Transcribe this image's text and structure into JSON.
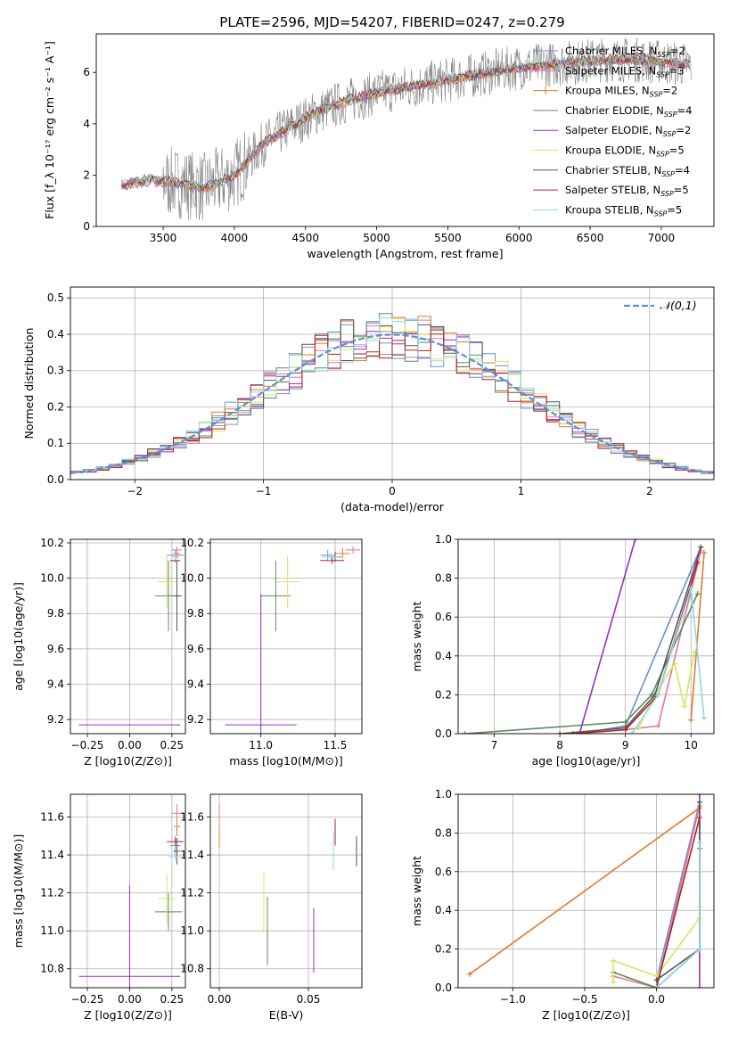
{
  "figure": {
    "title": "PLATE=2596, MJD=54207, FIBERID=0247, z=0.279"
  },
  "colors": {
    "chabrier_miles": "#6b8fd6",
    "salpeter_miles": "#e8749a",
    "kroupa_miles": "#e07b2f",
    "chabrier_elodie": "#5e8a5e",
    "salpeter_elodie": "#9b2fc0",
    "kroupa_elodie": "#d4e85a",
    "chabrier_stelib": "#555555",
    "salpeter_stelib": "#b22222",
    "kroupa_stelib": "#8fd8e6",
    "data": "#808080",
    "normal": "#5b8fd6"
  },
  "chart_data": [
    {
      "id": "spectrum",
      "type": "line",
      "title": "PLATE=2596, MJD=54207, FIBERID=0247, z=0.279",
      "xlabel": "wavelength [Angstrom, rest frame]",
      "ylabel": "Flux [f_λ 10⁻¹⁷ erg cm⁻² s⁻¹ A⁻¹]",
      "xlim": [
        3030,
        7370
      ],
      "ylim": [
        0,
        7.5
      ],
      "xticks": [
        3500,
        4000,
        4500,
        5000,
        5500,
        6000,
        6500,
        7000
      ],
      "yticks": [
        0,
        2,
        4,
        6
      ],
      "legend": "top-right",
      "legend_entries": [
        "Chabrier MILES, N_SSP=2",
        "Salpeter MILES, N_SSP=3",
        "Kroupa MILES, N_SSP=2",
        "Chabrier ELODIE, N_SSP=4",
        "Salpeter ELODIE, N_SSP=2",
        "Kroupa ELODIE, N_SSP=5",
        "Chabrier STELIB, N_SSP=4",
        "Salpeter STELIB, N_SSP=5",
        "Kroupa STELIB, N_SSP=5"
      ],
      "model_curve": {
        "x": [
          3200,
          3400,
          3600,
          3800,
          4000,
          4200,
          4400,
          4600,
          4800,
          5000,
          5200,
          5400,
          5600,
          5800,
          6000,
          6200,
          6400,
          6600,
          6800,
          7000,
          7200
        ],
        "y": [
          1.6,
          1.8,
          1.7,
          1.5,
          2.0,
          3.2,
          3.9,
          4.5,
          4.9,
          5.2,
          5.4,
          5.6,
          5.8,
          6.0,
          6.2,
          6.3,
          6.4,
          6.5,
          6.5,
          6.4,
          6.3
        ]
      }
    },
    {
      "id": "residuals",
      "type": "line",
      "xlabel": "(data-model)/error",
      "ylabel": "Normed distribution",
      "xlim": [
        -2.5,
        2.5
      ],
      "ylim": [
        0,
        0.53
      ],
      "xticks": [
        -2,
        -1,
        0,
        1,
        2
      ],
      "yticks": [
        0.0,
        0.1,
        0.2,
        0.3,
        0.4,
        0.5
      ],
      "legend": "top-right",
      "legend_entries": [
        "𝒩(0,1)"
      ],
      "histogram_bin_width": 0.1,
      "normal": {
        "mu": 0,
        "sigma": 1
      }
    },
    {
      "id": "age_vs_Z",
      "type": "scatter",
      "xlabel": "Z [log10(Z/Z⊙)]",
      "ylabel": "age  [log10(age/yr)]",
      "xlim": [
        -0.35,
        0.33
      ],
      "ylim": [
        9.12,
        10.22
      ],
      "xticks": [
        -0.25,
        0.0,
        0.25
      ],
      "yticks": [
        9.2,
        9.4,
        9.6,
        9.8,
        10.0,
        10.2
      ],
      "points": [
        {
          "s": "chabrier_miles",
          "x": 0.27,
          "y": 10.13,
          "xe": 0.05,
          "ye": 0.03
        },
        {
          "s": "salpeter_miles",
          "x": 0.28,
          "y": 10.16,
          "xe": 0.03,
          "ye": 0.02
        },
        {
          "s": "kroupa_miles",
          "x": 0.28,
          "y": 10.14,
          "xe": 0.02,
          "ye": 0.03
        },
        {
          "s": "chabrier_elodie",
          "x": 0.23,
          "y": 9.9,
          "xe": 0.08,
          "ye": 0.2
        },
        {
          "s": "salpeter_elodie",
          "x": 0.0,
          "y": 9.17,
          "xe": 0.3,
          "ye": 0.0
        },
        {
          "s": "kroupa_elodie",
          "x": 0.22,
          "y": 9.98,
          "xe": 0.05,
          "ye": 0.15
        },
        {
          "s": "chabrier_stelib",
          "x": 0.28,
          "y": 9.9,
          "xe": 0.02,
          "ye": 0.2
        },
        {
          "s": "salpeter_stelib",
          "x": 0.27,
          "y": 10.1,
          "xe": 0.03,
          "ye": 0.01
        },
        {
          "s": "kroupa_stelib",
          "x": 0.27,
          "y": 10.12,
          "xe": 0.02,
          "ye": 0.02
        }
      ]
    },
    {
      "id": "age_vs_mass",
      "type": "scatter",
      "xlabel": "mass [log10(M/M⊙)]",
      "ylabel": "",
      "xlim": [
        10.66,
        11.68
      ],
      "ylim": [
        9.12,
        10.22
      ],
      "xticks": [
        11.0,
        11.5
      ],
      "yticks": [
        9.2,
        9.4,
        9.6,
        9.8,
        10.0,
        10.2
      ],
      "points": [
        {
          "s": "chabrier_miles",
          "x": 11.45,
          "y": 10.13,
          "xe": 0.05,
          "ye": 0.03
        },
        {
          "s": "salpeter_miles",
          "x": 11.62,
          "y": 10.16,
          "xe": 0.05,
          "ye": 0.02
        },
        {
          "s": "kroupa_miles",
          "x": 11.55,
          "y": 10.14,
          "xe": 0.05,
          "ye": 0.03
        },
        {
          "s": "chabrier_elodie",
          "x": 11.1,
          "y": 9.9,
          "xe": 0.1,
          "ye": 0.2
        },
        {
          "s": "salpeter_elodie",
          "x": 11.0,
          "y": 9.17,
          "xe": 0.24,
          "ye": 0.74
        },
        {
          "s": "kroupa_elodie",
          "x": 11.18,
          "y": 9.98,
          "xe": 0.08,
          "ye": 0.15
        },
        {
          "s": "chabrier_stelib",
          "x": 11.5,
          "y": 10.12,
          "xe": 0.04,
          "ye": 0.03
        },
        {
          "s": "salpeter_stelib",
          "x": 11.48,
          "y": 10.1,
          "xe": 0.08,
          "ye": 0.02
        },
        {
          "s": "kroupa_stelib",
          "x": 11.47,
          "y": 10.12,
          "xe": 0.06,
          "ye": 0.03
        }
      ]
    },
    {
      "id": "weight_vs_age",
      "type": "line",
      "xlabel": "age  [log10(age/yr)]",
      "ylabel": "mass weight",
      "xlim": [
        6.45,
        10.35
      ],
      "ylim": [
        0,
        1.0
      ],
      "xticks": [
        7,
        8,
        9,
        10
      ],
      "yticks": [
        0.0,
        0.2,
        0.4,
        0.6,
        0.8,
        1.0
      ],
      "series": [
        {
          "s": "chabrier_miles",
          "x": [
            8.3,
            9.0,
            10.15
          ],
          "y": [
            0.0,
            0.04,
            0.96
          ]
        },
        {
          "s": "salpeter_miles",
          "x": [
            9.0,
            9.5,
            10.15
          ],
          "y": [
            0.02,
            0.04,
            0.94
          ]
        },
        {
          "s": "kroupa_miles",
          "x": [
            10.0,
            10.2
          ],
          "y": [
            0.07,
            0.93
          ]
        },
        {
          "s": "chabrier_elodie",
          "x": [
            6.55,
            9.0,
            9.4,
            10.1
          ],
          "y": [
            0.0,
            0.06,
            0.2,
            0.72
          ]
        },
        {
          "s": "salpeter_elodie",
          "x": [
            8.3,
            9.15
          ],
          "y": [
            0.0,
            1.0
          ]
        },
        {
          "s": "kroupa_elodie",
          "x": [
            9.2,
            9.45,
            9.75,
            9.9,
            10.05
          ],
          "y": [
            0.03,
            0.2,
            0.36,
            0.14,
            0.42
          ]
        },
        {
          "s": "chabrier_stelib",
          "x": [
            8.0,
            9.0,
            9.45,
            10.15
          ],
          "y": [
            0.0,
            0.03,
            0.2,
            0.96
          ]
        },
        {
          "s": "salpeter_stelib",
          "x": [
            8.2,
            9.0,
            9.5,
            10.1
          ],
          "y": [
            0.0,
            0.02,
            0.2,
            0.88
          ]
        },
        {
          "s": "kroupa_stelib",
          "x": [
            9.1,
            9.5,
            10.0,
            10.2
          ],
          "y": [
            0.0,
            0.2,
            0.75,
            0.08
          ]
        }
      ]
    },
    {
      "id": "mass_vs_Z",
      "type": "scatter",
      "xlabel": "Z [log10(Z/Z⊙)]",
      "ylabel": "mass [log10(M/M⊙)]",
      "xlim": [
        -0.35,
        0.33
      ],
      "ylim": [
        10.7,
        11.72
      ],
      "xticks": [
        -0.25,
        0.0,
        0.25
      ],
      "yticks": [
        10.8,
        11.0,
        11.2,
        11.4,
        11.6
      ],
      "points": [
        {
          "s": "chabrier_miles",
          "x": 0.27,
          "y": 11.45,
          "xe": 0.03,
          "ye": 0.05
        },
        {
          "s": "salpeter_miles",
          "x": 0.28,
          "y": 11.62,
          "xe": 0.03,
          "ye": 0.05
        },
        {
          "s": "kroupa_miles",
          "x": 0.28,
          "y": 11.55,
          "xe": 0.02,
          "ye": 0.05
        },
        {
          "s": "chabrier_elodie",
          "x": 0.23,
          "y": 11.1,
          "xe": 0.08,
          "ye": 0.1
        },
        {
          "s": "salpeter_elodie",
          "x": 0.0,
          "y": 10.76,
          "xe": 0.3,
          "ye": 0.48
        },
        {
          "s": "kroupa_elodie",
          "x": 0.22,
          "y": 11.17,
          "xe": 0.05,
          "ye": 0.13
        },
        {
          "s": "chabrier_stelib",
          "x": 0.28,
          "y": 11.42,
          "xe": 0.02,
          "ye": 0.07
        },
        {
          "s": "salpeter_stelib",
          "x": 0.27,
          "y": 11.47,
          "xe": 0.05,
          "ye": 0.02
        },
        {
          "s": "kroupa_stelib",
          "x": 0.27,
          "y": 11.39,
          "xe": 0.04,
          "ye": 0.02
        }
      ]
    },
    {
      "id": "mass_vs_ebv",
      "type": "scatter",
      "xlabel": "E(B-V)",
      "ylabel": "",
      "xlim": [
        -0.005,
        0.08
      ],
      "ylim": [
        10.7,
        11.72
      ],
      "xticks": [
        0.0,
        0.05
      ],
      "yticks": [
        10.8,
        11.0,
        11.2,
        11.4,
        11.6
      ],
      "points": [
        {
          "s": "chabrier_miles",
          "x": 0.0,
          "y": 11.62,
          "xe": 0.0,
          "ye": 0.04
        },
        {
          "s": "salpeter_miles",
          "x": 0.0,
          "y": 11.6,
          "xe": 0.0,
          "ye": 0.07
        },
        {
          "s": "kroupa_miles",
          "x": 0.0,
          "y": 11.5,
          "xe": 0.0,
          "ye": 0.06
        },
        {
          "s": "chabrier_elodie",
          "x": 0.027,
          "y": 11.0,
          "xe": 0.0,
          "ye": 0.18
        },
        {
          "s": "salpeter_elodie",
          "x": 0.053,
          "y": 10.95,
          "xe": 0.0,
          "ye": 0.17
        },
        {
          "s": "kroupa_elodie",
          "x": 0.025,
          "y": 11.15,
          "xe": 0.0,
          "ye": 0.16
        },
        {
          "s": "chabrier_stelib",
          "x": 0.077,
          "y": 11.42,
          "xe": 0.0,
          "ye": 0.08
        },
        {
          "s": "salpeter_stelib",
          "x": 0.065,
          "y": 11.52,
          "xe": 0.0,
          "ye": 0.07
        },
        {
          "s": "kroupa_stelib",
          "x": 0.064,
          "y": 11.42,
          "xe": 0.0,
          "ye": 0.1
        }
      ]
    },
    {
      "id": "weight_vs_Z",
      "type": "line",
      "xlabel": "Z [log10(Z/Z⊙)]",
      "ylabel": "mass weight",
      "xlim": [
        -1.38,
        0.4
      ],
      "ylim": [
        0,
        1.0
      ],
      "xticks": [
        -1.0,
        -0.5,
        0.0
      ],
      "yticks": [
        0.0,
        0.2,
        0.4,
        0.6,
        0.8,
        1.0
      ],
      "series": [
        {
          "s": "chabrier_miles",
          "x": [
            0.0,
            0.3
          ],
          "y": [
            0.04,
            0.96
          ]
        },
        {
          "s": "salpeter_miles",
          "x": [
            -0.3,
            0.0,
            0.3
          ],
          "y": [
            0.06,
            0.0,
            0.94
          ]
        },
        {
          "s": "kroupa_miles",
          "x": [
            -1.3,
            0.3
          ],
          "y": [
            0.07,
            0.93
          ]
        },
        {
          "s": "chabrier_elodie",
          "x": [
            -0.3,
            0.0,
            0.3,
            0.3
          ],
          "y": [
            0.08,
            0.0,
            0.2,
            0.72
          ]
        },
        {
          "s": "salpeter_elodie",
          "x": [
            0.3,
            0.3
          ],
          "y": [
            0.0,
            1.0
          ]
        },
        {
          "s": "kroupa_elodie",
          "x": [
            -0.3,
            -0.3,
            0.0,
            0.3,
            0.3
          ],
          "y": [
            0.03,
            0.14,
            0.06,
            0.36,
            0.42
          ]
        },
        {
          "s": "chabrier_stelib",
          "x": [
            0.0,
            0.3,
            0.3
          ],
          "y": [
            0.04,
            0.2,
            0.96
          ]
        },
        {
          "s": "salpeter_stelib",
          "x": [
            0.0,
            0.3
          ],
          "y": [
            0.0,
            0.88
          ]
        },
        {
          "s": "kroupa_stelib",
          "x": [
            0.0,
            0.3,
            0.3
          ],
          "y": [
            0.0,
            0.2,
            0.75
          ]
        }
      ]
    }
  ]
}
